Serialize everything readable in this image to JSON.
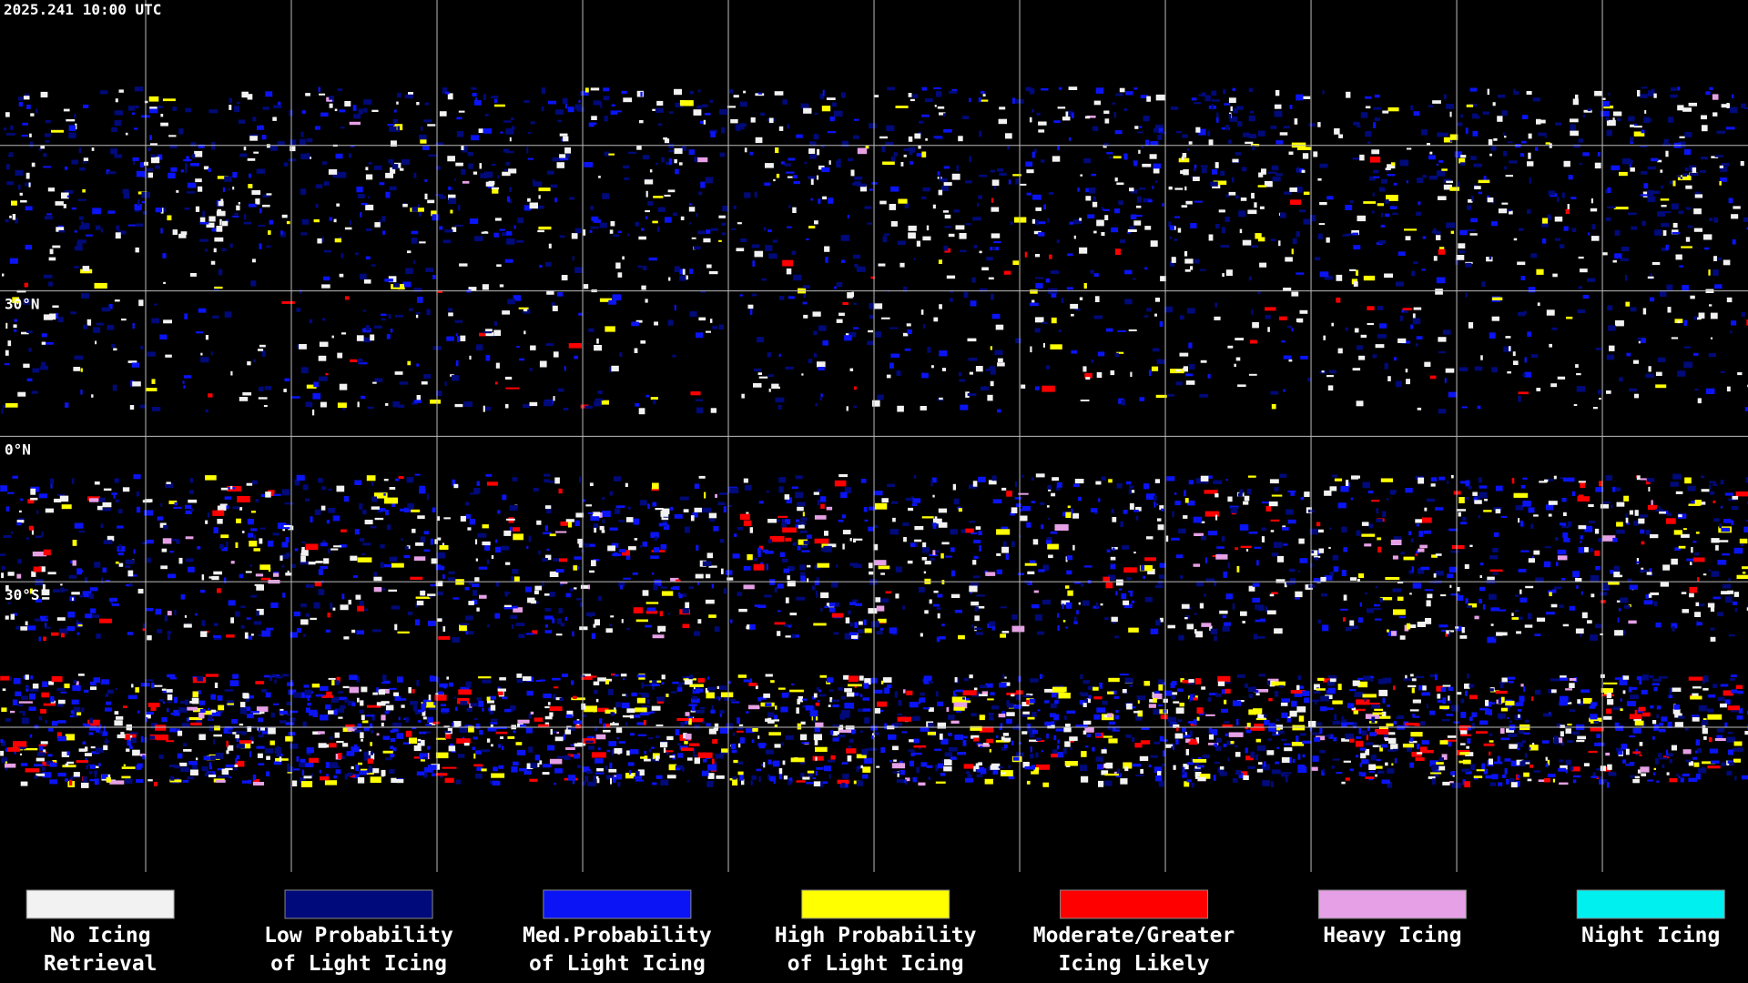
{
  "header": {
    "timestamp": "2025.241 10:00 UTC"
  },
  "map": {
    "latitude_labels": [
      "30°N",
      "0°N",
      "30°S"
    ]
  },
  "legend": {
    "items": [
      {
        "lines": [
          "No Icing",
          "Retrieval"
        ],
        "color": "#f2f2f2"
      },
      {
        "lines": [
          "Low Probability",
          "of Light Icing"
        ],
        "color": "#000a7a"
      },
      {
        "lines": [
          "Med.Probability",
          "of Light Icing"
        ],
        "color": "#0a14f5"
      },
      {
        "lines": [
          "High Probability",
          "of Light Icing"
        ],
        "color": "#ffff00"
      },
      {
        "lines": [
          "Moderate/Greater",
          "Icing Likely"
        ],
        "color": "#ff0000"
      },
      {
        "lines": [
          "Heavy Icing"
        ],
        "color": "#e6a0e6"
      },
      {
        "lines": [
          "Night Icing"
        ],
        "color": "#00f0f0"
      }
    ]
  }
}
